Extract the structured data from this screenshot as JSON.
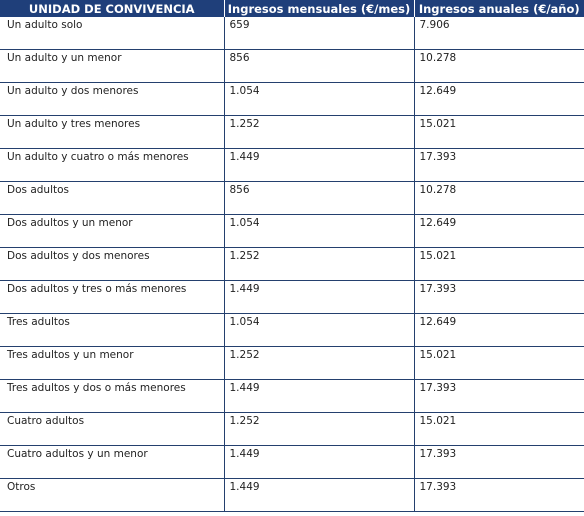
{
  "table": {
    "headers": [
      "UNIDAD DE CONVIVENCIA",
      "Ingresos mensuales (€/mes)",
      "Ingresos anuales (€/año)"
    ],
    "rows": [
      [
        "Un adulto solo",
        "659",
        "7.906"
      ],
      [
        "Un adulto y un menor",
        "856",
        "10.278"
      ],
      [
        "Un adulto y dos menores",
        "1.054",
        "12.649"
      ],
      [
        "Un adulto y tres menores",
        "1.252",
        "15.021"
      ],
      [
        "Un adulto y cuatro o más menores",
        "1.449",
        "17.393"
      ],
      [
        "Dos adultos",
        "856",
        "10.278"
      ],
      [
        "Dos adultos y un menor",
        "1.054",
        "12.649"
      ],
      [
        "Dos adultos y dos menores",
        "1.252",
        "15.021"
      ],
      [
        "Dos adultos y tres o más menores",
        "1.449",
        "17.393"
      ],
      [
        "Tres adultos",
        "1.054",
        "12.649"
      ],
      [
        "Tres adultos y un menor",
        "1.252",
        "15.021"
      ],
      [
        "Tres adultos y dos o más menores",
        "1.449",
        "17.393"
      ],
      [
        "Cuatro adultos",
        "1.252",
        "15.021"
      ],
      [
        "Cuatro adultos y un menor",
        "1.449",
        "17.393"
      ],
      [
        "Otros",
        "1.449",
        "17.393"
      ]
    ]
  },
  "colors": {
    "header_bg": "#1f3f7a",
    "header_text": "#ffffff",
    "row_border": "#24406e"
  }
}
